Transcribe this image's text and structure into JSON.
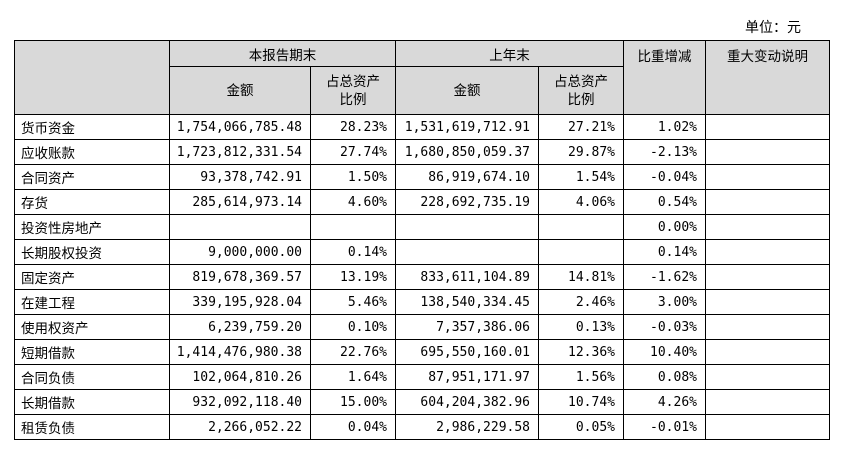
{
  "unit_label": "单位：元",
  "header": {
    "current_period": "本报告期末",
    "prior_year_end": "上年末",
    "weight_change": "比重增减",
    "major_change_desc": "重大变动说明",
    "amount": "金额",
    "pct_of_total_line1": "占总资产",
    "pct_of_total_line2": "比例"
  },
  "rows": [
    {
      "item": "货币资金",
      "cur_amount": "1,754,066,785.48",
      "cur_pct": "28.23%",
      "prev_amount": "1,531,619,712.91",
      "prev_pct": "27.21%",
      "change": "1.02%",
      "note": ""
    },
    {
      "item": "应收账款",
      "cur_amount": "1,723,812,331.54",
      "cur_pct": "27.74%",
      "prev_amount": "1,680,850,059.37",
      "prev_pct": "29.87%",
      "change": "-2.13%",
      "note": ""
    },
    {
      "item": "合同资产",
      "cur_amount": "93,378,742.91",
      "cur_pct": "1.50%",
      "prev_amount": "86,919,674.10",
      "prev_pct": "1.54%",
      "change": "-0.04%",
      "note": ""
    },
    {
      "item": "存货",
      "cur_amount": "285,614,973.14",
      "cur_pct": "4.60%",
      "prev_amount": "228,692,735.19",
      "prev_pct": "4.06%",
      "change": "0.54%",
      "note": ""
    },
    {
      "item": "投资性房地产",
      "cur_amount": "",
      "cur_pct": "",
      "prev_amount": "",
      "prev_pct": "",
      "change": "0.00%",
      "note": ""
    },
    {
      "item": "长期股权投资",
      "cur_amount": "9,000,000.00",
      "cur_pct": "0.14%",
      "prev_amount": "",
      "prev_pct": "",
      "change": "0.14%",
      "note": ""
    },
    {
      "item": "固定资产",
      "cur_amount": "819,678,369.57",
      "cur_pct": "13.19%",
      "prev_amount": "833,611,104.89",
      "prev_pct": "14.81%",
      "change": "-1.62%",
      "note": ""
    },
    {
      "item": "在建工程",
      "cur_amount": "339,195,928.04",
      "cur_pct": "5.46%",
      "prev_amount": "138,540,334.45",
      "prev_pct": "2.46%",
      "change": "3.00%",
      "note": ""
    },
    {
      "item": "使用权资产",
      "cur_amount": "6,239,759.20",
      "cur_pct": "0.10%",
      "prev_amount": "7,357,386.06",
      "prev_pct": "0.13%",
      "change": "-0.03%",
      "note": ""
    },
    {
      "item": "短期借款",
      "cur_amount": "1,414,476,980.38",
      "cur_pct": "22.76%",
      "prev_amount": "695,550,160.01",
      "prev_pct": "12.36%",
      "change": "10.40%",
      "note": ""
    },
    {
      "item": "合同负债",
      "cur_amount": "102,064,810.26",
      "cur_pct": "1.64%",
      "prev_amount": "87,951,171.97",
      "prev_pct": "1.56%",
      "change": "0.08%",
      "note": ""
    },
    {
      "item": "长期借款",
      "cur_amount": "932,092,118.40",
      "cur_pct": "15.00%",
      "prev_amount": "604,204,382.96",
      "prev_pct": "10.74%",
      "change": "4.26%",
      "note": ""
    },
    {
      "item": "租赁负债",
      "cur_amount": "2,266,052.22",
      "cur_pct": "0.04%",
      "prev_amount": "2,986,229.58",
      "prev_pct": "0.05%",
      "change": "-0.01%",
      "note": ""
    }
  ]
}
